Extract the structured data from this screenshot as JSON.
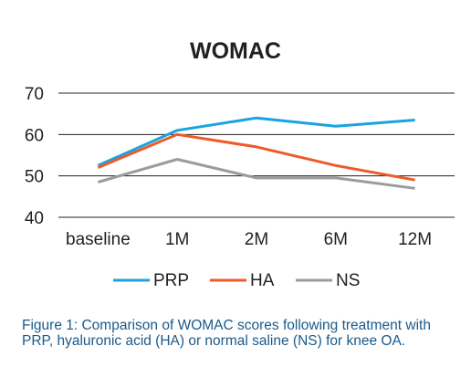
{
  "chart_data": {
    "type": "line",
    "title": "WOMAC",
    "xlabel": "",
    "ylabel": "",
    "categories": [
      "baseline",
      "1M",
      "2M",
      "6M",
      "12M"
    ],
    "ylim": [
      40,
      70
    ],
    "yticks": [
      40,
      50,
      60,
      70
    ],
    "grid": true,
    "legend": "bottom",
    "series": [
      {
        "name": "PRP",
        "color": "#1aa3e0",
        "values": [
          52.5,
          61,
          64,
          62,
          63.5
        ]
      },
      {
        "name": "HA",
        "color": "#ee5a2a",
        "values": [
          52,
          60,
          57,
          52.5,
          49
        ]
      },
      {
        "name": "NS",
        "color": "#9b9b9b",
        "values": [
          48.5,
          54,
          49.5,
          49.5,
          47
        ]
      }
    ]
  },
  "caption": "Figure 1: Comparison of WOMAC scores following treatment with PRP, hyaluronic acid (HA) or normal saline (NS) for knee OA."
}
